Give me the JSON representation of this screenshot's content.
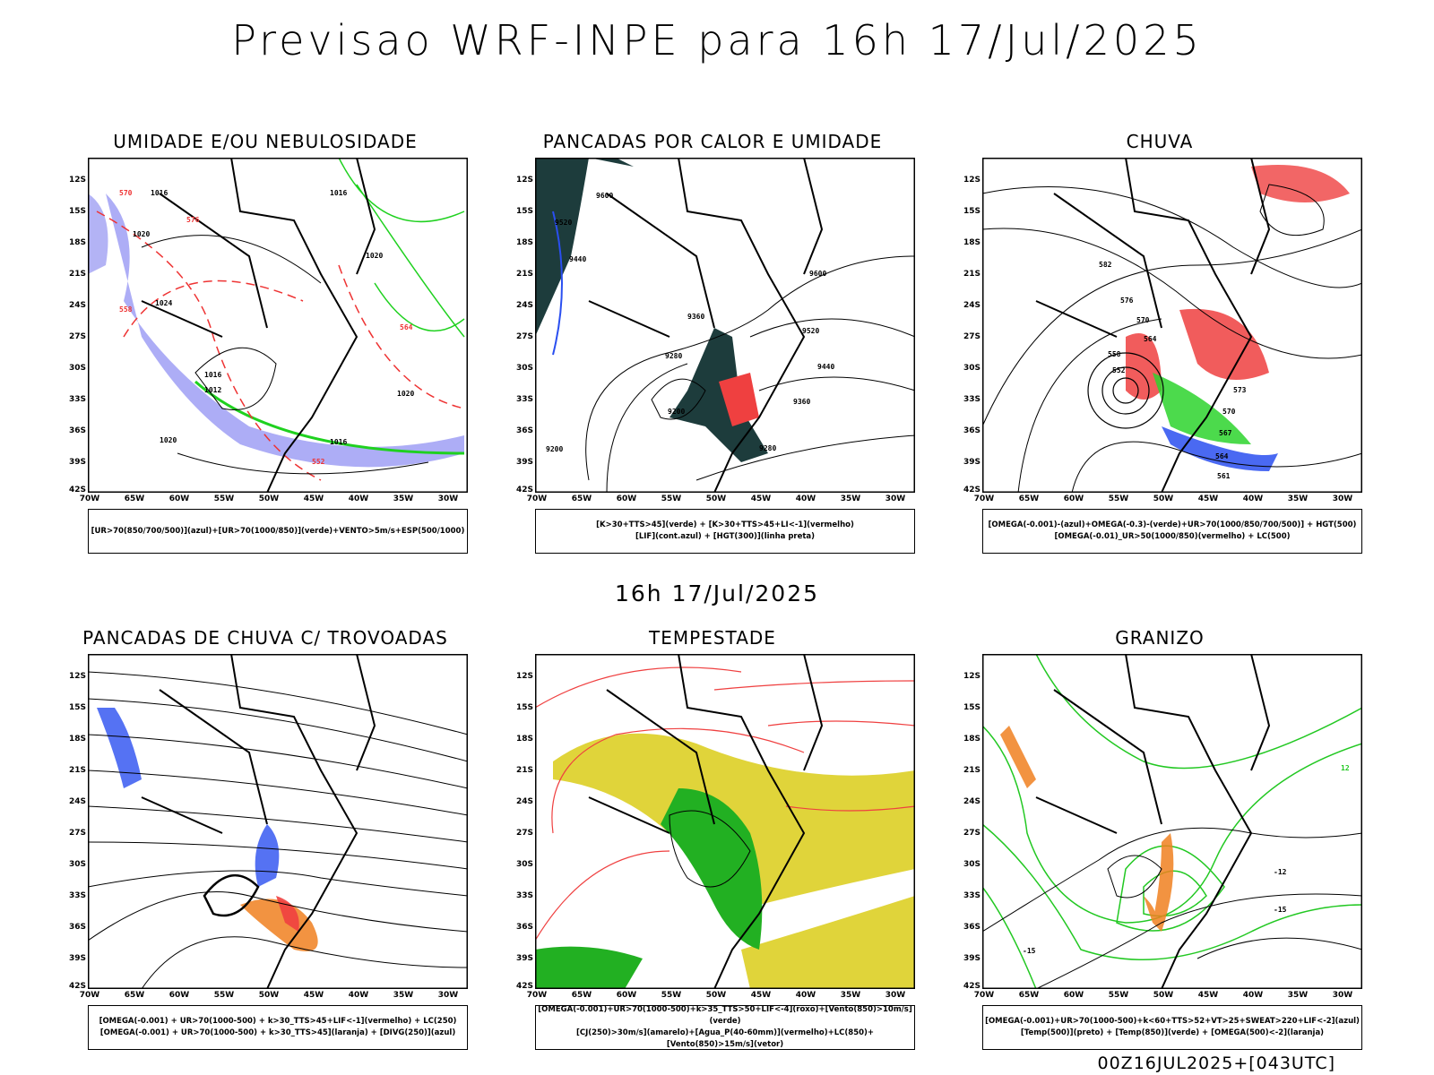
{
  "title": "Previsao WRF-INPE  para 16h 17/Jul/2025",
  "mid_title": "16h 17/Jul/2025",
  "footer": "00Z16JUL2025+[043UTC]",
  "lat_labels": [
    "12S",
    "15S",
    "18S",
    "21S",
    "24S",
    "27S",
    "30S",
    "33S",
    "36S",
    "39S",
    "42S"
  ],
  "lon_labels": [
    "70W",
    "65W",
    "60W",
    "55W",
    "50W",
    "45W",
    "40W",
    "35W",
    "30W"
  ],
  "panels": [
    {
      "title": "UMIDADE E/OU NEBULOSIDADE",
      "legend": [
        "[UR>70(850/700/500)](azul)+[UR>70(1000/850)](verde)+VENTO>5m/s+ESP(500/1000)"
      ]
    },
    {
      "title": "PANCADAS POR CALOR E UMIDADE",
      "legend": [
        "[K>30+TTS>45](verde) + [K>30+TTS>45+LI<-1](vermelho)",
        "[LIF](cont.azul) + [HGT(300)](linha preta)"
      ]
    },
    {
      "title": "CHUVA",
      "legend": [
        "[OMEGA(-0.001)-(azul)+OMEGA(-0.3)-(verde)+UR>70(1000/850/700/500)] + HGT(500)",
        "[OMEGA(-0.01)_UR>50(1000/850)(vermelho) + LC(500)"
      ]
    },
    {
      "title": "PANCADAS DE CHUVA C/ TROVOADAS",
      "legend": [
        "[OMEGA(-0.001) + UR>70(1000-500) + k>30_TTS>45+LIF<-1](vermelho) + LC(250)",
        "[OMEGA(-0.001) + UR>70(1000-500) + k>30_TTS>45](laranja) + [DIVG(250)](azul)"
      ]
    },
    {
      "title": "TEMPESTADE",
      "legend": [
        "[OMEGA(-0.001)+UR>70(1000-500)+k>35_TTS>50+LIF<-4](roxo)+[Vento(850)>10m/s](verde)",
        "[CJ(250)>30m/s](amarelo)+[Agua_P(40-60mm)](vermelho)+LC(850)+[Vento(850)>15m/s](vetor)"
      ]
    },
    {
      "title": "GRANIZO",
      "legend": [
        "[OMEGA(-0.001)+UR>70(1000-500)+k<60+TTS>52+VT>25+SWEAT>220+LIF<-2](azul)",
        "[Temp(500)](preto) + [Temp(850)](verde) + [OMEGA(500)<-2](laranja)"
      ]
    }
  ],
  "contour_labels": {
    "p1": [
      "1016",
      "1020",
      "1024",
      "1016",
      "1020",
      "1016",
      "1012",
      "1016",
      "1020",
      "1020",
      "570",
      "576",
      "558",
      "564",
      "552"
    ],
    "p2": [
      "9600",
      "9520",
      "9440",
      "9360",
      "9280",
      "9200",
      "9600",
      "9520",
      "9440",
      "9360",
      "9280",
      "9200"
    ],
    "p3": [
      "582",
      "576",
      "570",
      "564",
      "558",
      "552",
      "573",
      "570",
      "567",
      "564",
      "561"
    ],
    "p6": [
      "-12",
      "-15",
      "-15",
      "12"
    ]
  }
}
